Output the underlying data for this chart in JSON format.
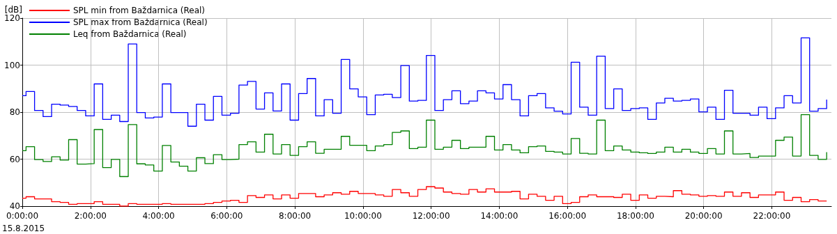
{
  "chart_data": {
    "type": "step",
    "ylabel": "[dB]",
    "annotations": [
      "15.8.2015"
    ],
    "legend": "top left",
    "grid": true,
    "line_style": "solid",
    "xlim": [
      0,
      23.75
    ],
    "ylim": [
      40,
      120
    ],
    "yticks": [
      40,
      60,
      80,
      100,
      120
    ],
    "xticks": [
      {
        "value": 0,
        "label": "0:00:00"
      },
      {
        "value": 2,
        "label": "2:00:00"
      },
      {
        "value": 4,
        "label": "4:00:00"
      },
      {
        "value": 6,
        "label": "6:00:00"
      },
      {
        "value": 8,
        "label": "8:00:00"
      },
      {
        "value": 10,
        "label": "10:00:00"
      },
      {
        "value": 12,
        "label": "12:00:00"
      },
      {
        "value": 14,
        "label": "14:00:00"
      },
      {
        "value": 16,
        "label": "16:00:00"
      },
      {
        "value": 18,
        "label": "18:00:00"
      },
      {
        "value": 20,
        "label": "20:00:00"
      },
      {
        "value": 22,
        "label": "22:00:00"
      }
    ],
    "x": [
      0,
      0.11,
      0.36,
      0.61,
      0.86,
      1.11,
      1.36,
      1.61,
      1.86,
      2.11,
      2.36,
      2.61,
      2.86,
      3.11,
      3.36,
      3.61,
      3.86,
      4.11,
      4.36,
      4.61,
      4.86,
      5.11,
      5.36,
      5.61,
      5.86,
      6.11,
      6.36,
      6.61,
      6.86,
      7.11,
      7.36,
      7.61,
      7.86,
      8.11,
      8.36,
      8.61,
      8.86,
      9.11,
      9.36,
      9.61,
      9.86,
      10.11,
      10.36,
      10.61,
      10.86,
      11.11,
      11.36,
      11.61,
      11.86,
      12.11,
      12.36,
      12.61,
      12.86,
      13.11,
      13.36,
      13.61,
      13.86,
      14.11,
      14.36,
      14.61,
      14.86,
      15.11,
      15.36,
      15.61,
      15.86,
      16.11,
      16.36,
      16.61,
      16.86,
      17.11,
      17.36,
      17.61,
      17.86,
      18.11,
      18.36,
      18.61,
      18.86,
      19.11,
      19.36,
      19.61,
      19.86,
      20.11,
      20.36,
      20.61,
      20.86,
      21.11,
      21.36,
      21.61,
      21.86,
      22.11,
      22.36,
      22.61,
      22.86,
      23.11,
      23.36,
      23.61
    ],
    "series": [
      {
        "name": "SPL min from Baždarnica (Real)",
        "color": "#ff0000",
        "values": [
          43.4,
          44.0,
          43.1,
          43.1,
          41.9,
          41.6,
          40.8,
          41.1,
          41.1,
          41.9,
          40.8,
          40.8,
          40.0,
          41.1,
          40.8,
          40.8,
          40.8,
          41.1,
          40.8,
          40.8,
          40.8,
          40.8,
          41.1,
          41.6,
          42.2,
          42.5,
          41.6,
          44.5,
          43.7,
          44.8,
          43.1,
          44.8,
          43.4,
          45.4,
          45.4,
          44.0,
          44.8,
          45.7,
          45.1,
          46.3,
          45.4,
          45.4,
          44.8,
          44.2,
          47.1,
          45.7,
          44.2,
          47.1,
          48.3,
          47.7,
          46.0,
          45.4,
          45.1,
          47.1,
          46.0,
          47.4,
          46.0,
          46.0,
          46.3,
          43.1,
          45.1,
          44.2,
          42.5,
          44.2,
          41.1,
          41.6,
          44.0,
          44.8,
          44.0,
          44.0,
          43.7,
          45.1,
          42.5,
          44.8,
          43.4,
          44.2,
          44.0,
          46.6,
          45.1,
          44.8,
          44.2,
          44.5,
          44.2,
          46.0,
          44.2,
          45.7,
          43.7,
          44.8,
          44.8,
          46.0,
          42.5,
          43.7,
          41.9,
          42.8,
          42.2,
          42.2
        ]
      },
      {
        "name": "SPL max from Baždarnica (Real)",
        "color": "#0000ff",
        "values": [
          87.0,
          88.8,
          80.7,
          78.1,
          83.4,
          83.0,
          82.4,
          80.7,
          78.4,
          92.0,
          76.9,
          78.7,
          76.0,
          109.0,
          79.8,
          77.5,
          77.9,
          92.0,
          79.8,
          79.8,
          74.0,
          83.4,
          76.6,
          86.7,
          78.7,
          79.5,
          91.5,
          93.1,
          81.3,
          88.2,
          80.5,
          92.0,
          76.6,
          87.9,
          94.3,
          78.4,
          85.3,
          79.5,
          102.4,
          89.9,
          86.5,
          78.9,
          87.3,
          87.6,
          86.2,
          99.8,
          84.7,
          85.0,
          104.1,
          80.7,
          85.3,
          89.1,
          83.6,
          84.7,
          89.1,
          88.2,
          85.6,
          91.7,
          85.3,
          78.4,
          87.0,
          87.9,
          81.8,
          80.4,
          79.2,
          101.2,
          82.1,
          78.7,
          103.8,
          81.5,
          89.9,
          80.7,
          81.5,
          81.8,
          76.9,
          83.9,
          85.9,
          84.7,
          85.0,
          85.6,
          80.1,
          82.1,
          76.9,
          89.3,
          79.5,
          79.5,
          78.7,
          82.1,
          77.2,
          81.8,
          87.0,
          83.9,
          111.6,
          80.4,
          81.5,
          85.3
        ]
      },
      {
        "name": "Leq from Baždarnica (Real)",
        "color": "#008000",
        "values": [
          63.6,
          65.3,
          59.8,
          59.0,
          61.0,
          59.6,
          68.3,
          57.9,
          58.1,
          72.6,
          56.4,
          59.9,
          52.6,
          74.7,
          58.0,
          57.5,
          54.9,
          65.8,
          58.8,
          57.0,
          54.9,
          60.6,
          58.1,
          61.9,
          59.8,
          60.0,
          66.2,
          67.4,
          63.0,
          70.6,
          62.2,
          66.2,
          61.6,
          65.3,
          67.4,
          62.5,
          64.2,
          64.2,
          69.7,
          65.9,
          65.9,
          63.6,
          65.6,
          66.2,
          71.4,
          72.0,
          64.5,
          65.1,
          76.6,
          64.2,
          65.1,
          68.0,
          64.5,
          65.1,
          65.1,
          69.7,
          63.9,
          66.2,
          63.9,
          62.7,
          65.3,
          65.6,
          63.3,
          63.0,
          62.2,
          68.8,
          62.5,
          62.2,
          76.6,
          63.6,
          65.6,
          63.9,
          63.0,
          62.7,
          62.4,
          63.0,
          65.1,
          63.0,
          64.2,
          63.0,
          62.4,
          64.5,
          62.2,
          72.0,
          62.2,
          62.4,
          60.7,
          61.3,
          61.3,
          68.0,
          69.4,
          61.3,
          78.9,
          61.6,
          59.9,
          63.0
        ]
      }
    ]
  }
}
